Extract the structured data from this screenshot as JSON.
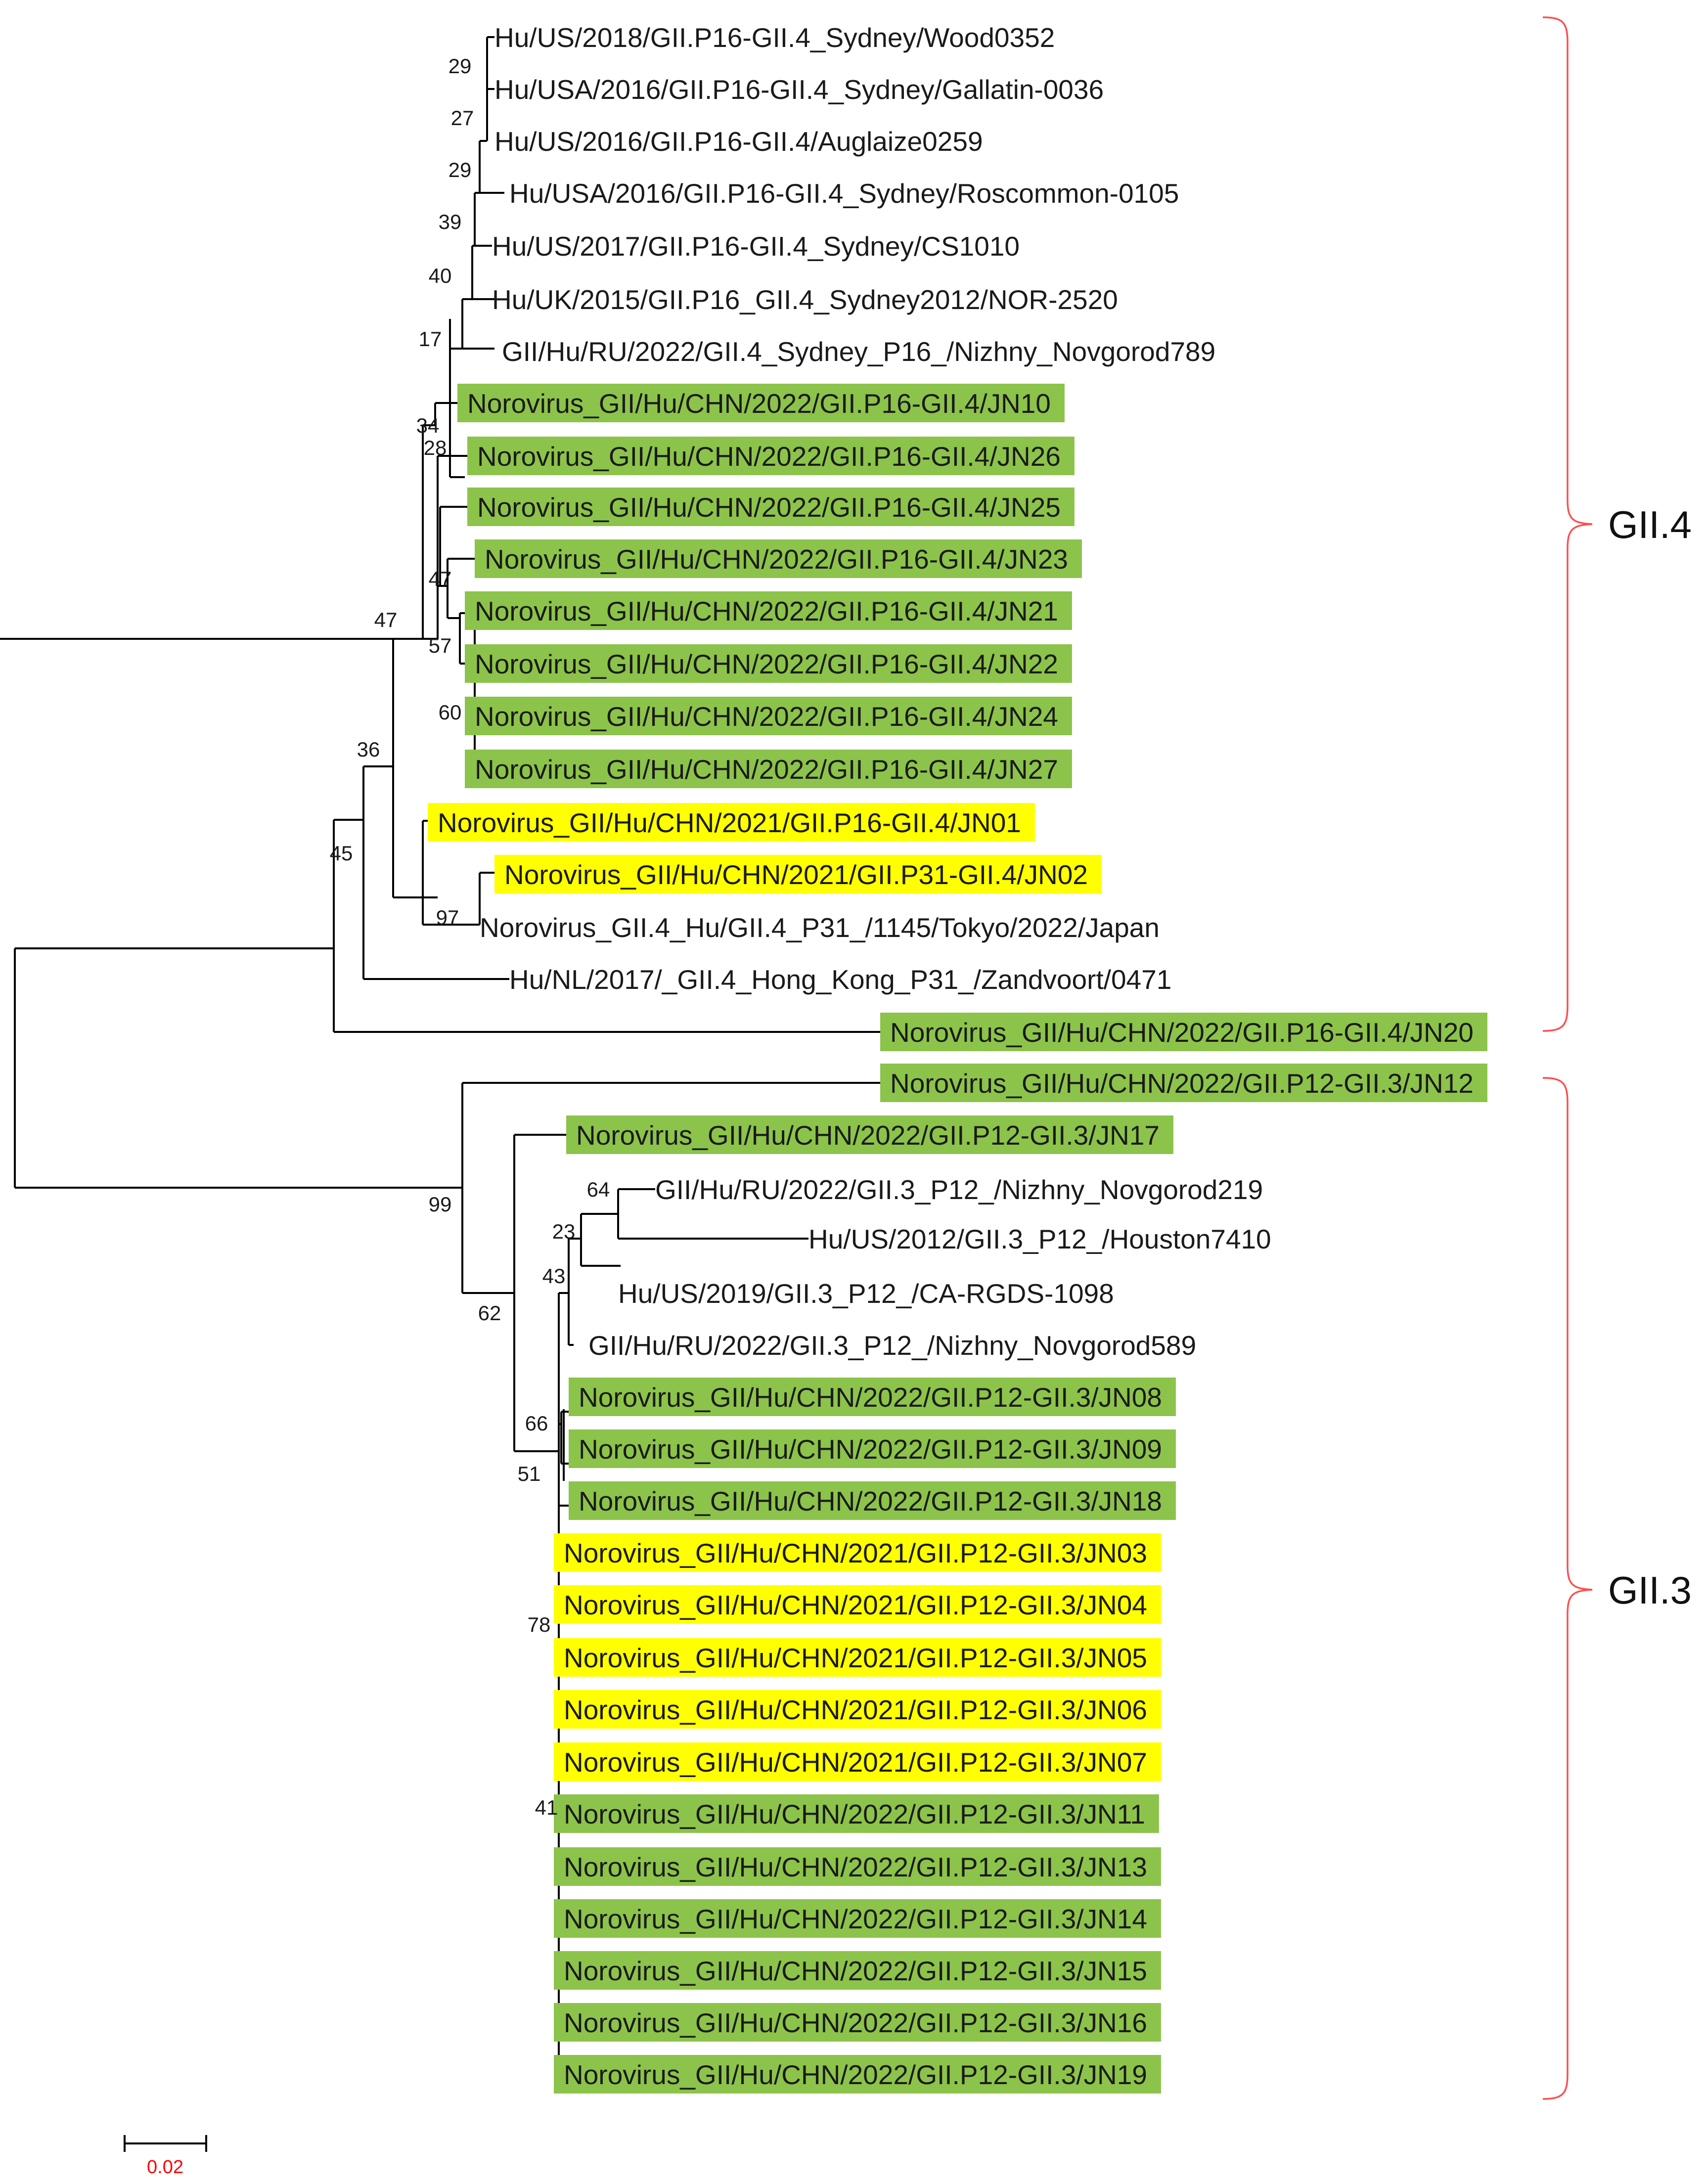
{
  "figure": {
    "type": "phylogenetic-tree",
    "scale_bar": {
      "label": "0.02",
      "color": "#ff0000"
    },
    "highlight_colors": {
      "green": "#8cc34a",
      "yellow": "#ffff00"
    },
    "bracket_color": "#ff4d4d"
  },
  "clades": [
    {
      "label": "GII.4"
    },
    {
      "label": "GII.3"
    }
  ],
  "leaves": [
    {
      "label": "Hu/US/2018/GII.P16-GII.4_Sydney/Wood0352",
      "highlight": "none"
    },
    {
      "label": "Hu/USA/2016/GII.P16-GII.4_Sydney/Gallatin-0036",
      "highlight": "none"
    },
    {
      "label": "Hu/US/2016/GII.P16-GII.4/Auglaize0259",
      "highlight": "none"
    },
    {
      "label": "Hu/USA/2016/GII.P16-GII.4_Sydney/Roscommon-0105",
      "highlight": "none"
    },
    {
      "label": "Hu/US/2017/GII.P16-GII.4_Sydney/CS1010",
      "highlight": "none"
    },
    {
      "label": "Hu/UK/2015/GII.P16_GII.4_Sydney2012/NOR-2520",
      "highlight": "none"
    },
    {
      "label": "GII/Hu/RU/2022/GII.4_Sydney_P16_/Nizhny_Novgorod789",
      "highlight": "none"
    },
    {
      "label": "Norovirus_GII/Hu/CHN/2022/GII.P16-GII.4/JN10",
      "highlight": "green"
    },
    {
      "label": "Norovirus_GII/Hu/CHN/2022/GII.P16-GII.4/JN26",
      "highlight": "green"
    },
    {
      "label": "Norovirus_GII/Hu/CHN/2022/GII.P16-GII.4/JN25",
      "highlight": "green"
    },
    {
      "label": "Norovirus_GII/Hu/CHN/2022/GII.P16-GII.4/JN23",
      "highlight": "green"
    },
    {
      "label": "Norovirus_GII/Hu/CHN/2022/GII.P16-GII.4/JN21",
      "highlight": "green"
    },
    {
      "label": "Norovirus_GII/Hu/CHN/2022/GII.P16-GII.4/JN22",
      "highlight": "green"
    },
    {
      "label": "Norovirus_GII/Hu/CHN/2022/GII.P16-GII.4/JN24",
      "highlight": "green"
    },
    {
      "label": "Norovirus_GII/Hu/CHN/2022/GII.P16-GII.4/JN27",
      "highlight": "green"
    },
    {
      "label": "Norovirus_GII/Hu/CHN/2021/GII.P16-GII.4/JN01",
      "highlight": "yellow"
    },
    {
      "label": "Norovirus_GII/Hu/CHN/2021/GII.P31-GII.4/JN02",
      "highlight": "yellow"
    },
    {
      "label": "Norovirus_GII.4_Hu/GII.4_P31_/1145/Tokyo/2022/Japan",
      "highlight": "none"
    },
    {
      "label": "Hu/NL/2017/_GII.4_Hong_Kong_P31_/Zandvoort/0471",
      "highlight": "none"
    },
    {
      "label": "Norovirus_GII/Hu/CHN/2022/GII.P16-GII.4/JN20",
      "highlight": "green"
    },
    {
      "label": "Norovirus_GII/Hu/CHN/2022/GII.P12-GII.3/JN12",
      "highlight": "green"
    },
    {
      "label": "Norovirus_GII/Hu/CHN/2022/GII.P12-GII.3/JN17",
      "highlight": "green"
    },
    {
      "label": "GII/Hu/RU/2022/GII.3_P12_/Nizhny_Novgorod219",
      "highlight": "none"
    },
    {
      "label": "Hu/US/2012/GII.3_P12_/Houston7410",
      "highlight": "none"
    },
    {
      "label": "Hu/US/2019/GII.3_P12_/CA-RGDS-1098",
      "highlight": "none"
    },
    {
      "label": "GII/Hu/RU/2022/GII.3_P12_/Nizhny_Novgorod589",
      "highlight": "none"
    },
    {
      "label": "Norovirus_GII/Hu/CHN/2022/GII.P12-GII.3/JN08",
      "highlight": "green"
    },
    {
      "label": "Norovirus_GII/Hu/CHN/2022/GII.P12-GII.3/JN09",
      "highlight": "green"
    },
    {
      "label": "Norovirus_GII/Hu/CHN/2022/GII.P12-GII.3/JN18",
      "highlight": "green"
    },
    {
      "label": "Norovirus_GII/Hu/CHN/2021/GII.P12-GII.3/JN03",
      "highlight": "yellow"
    },
    {
      "label": "Norovirus_GII/Hu/CHN/2021/GII.P12-GII.3/JN04",
      "highlight": "yellow"
    },
    {
      "label": "Norovirus_GII/Hu/CHN/2021/GII.P12-GII.3/JN05",
      "highlight": "yellow"
    },
    {
      "label": "Norovirus_GII/Hu/CHN/2021/GII.P12-GII.3/JN06",
      "highlight": "yellow"
    },
    {
      "label": "Norovirus_GII/Hu/CHN/2021/GII.P12-GII.3/JN07",
      "highlight": "yellow"
    },
    {
      "label": "Norovirus_GII/Hu/CHN/2022/GII.P12-GII.3/JN11",
      "highlight": "green"
    },
    {
      "label": "Norovirus_GII/Hu/CHN/2022/GII.P12-GII.3/JN13",
      "highlight": "green"
    },
    {
      "label": "Norovirus_GII/Hu/CHN/2022/GII.P12-GII.3/JN14",
      "highlight": "green"
    },
    {
      "label": "Norovirus_GII/Hu/CHN/2022/GII.P12-GII.3/JN15",
      "highlight": "green"
    },
    {
      "label": "Norovirus_GII/Hu/CHN/2022/GII.P12-GII.3/JN16",
      "highlight": "green"
    },
    {
      "label": "Norovirus_GII/Hu/CHN/2022/GII.P12-GII.3/JN19",
      "highlight": "green"
    }
  ],
  "bootstrap_values": [
    "29",
    "27",
    "29",
    "39",
    "40",
    "17",
    "34",
    "28",
    "47",
    "57",
    "60",
    "47",
    "36",
    "45",
    "97",
    "99",
    "62",
    "64",
    "23",
    "43",
    "66",
    "51",
    "78",
    "41"
  ]
}
